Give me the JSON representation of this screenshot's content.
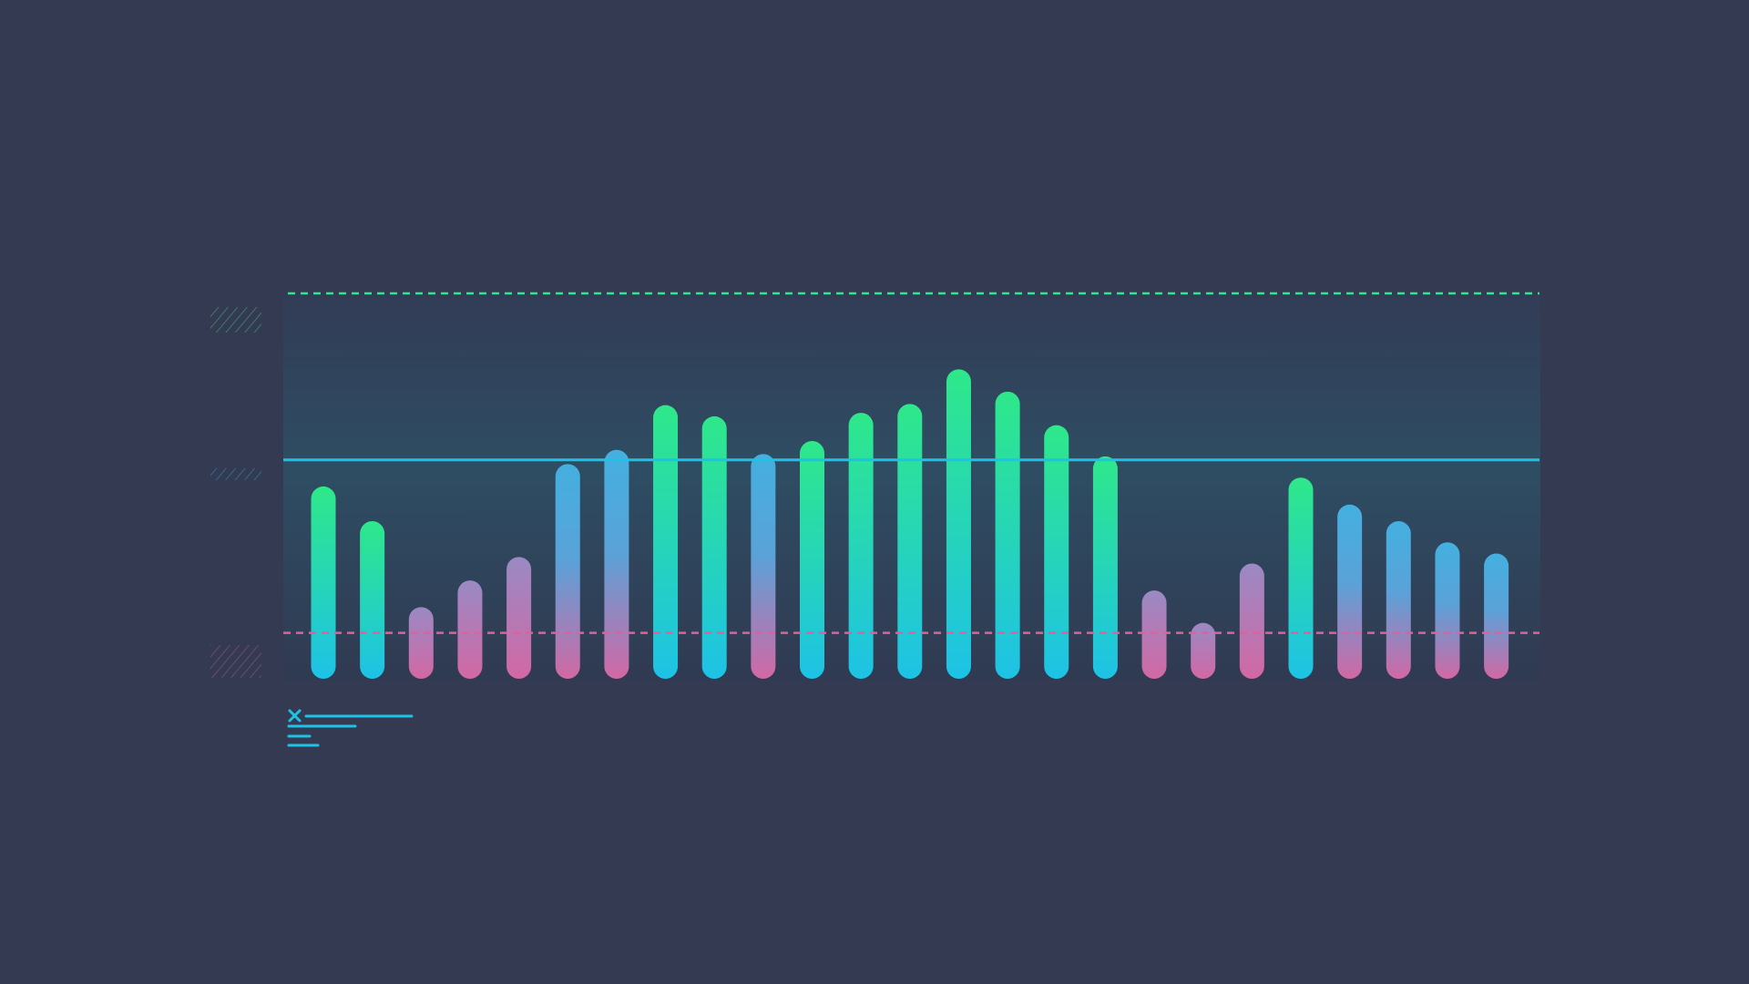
{
  "chart_data": {
    "type": "bar",
    "title": "",
    "xlabel": "",
    "ylabel": "",
    "ylim": [
      0,
      100
    ],
    "grid": false,
    "values": [
      49.9,
      40.9,
      18.6,
      25.5,
      31.6,
      55.7,
      59.4,
      71.0,
      68.1,
      58.3,
      61.7,
      69.0,
      71.3,
      80.3,
      74.5,
      65.8,
      57.7,
      22.9,
      14.5,
      29.9,
      52.2,
      45.2,
      40.9,
      35.4,
      32.5
    ],
    "bar_styles": [
      "green",
      "green",
      "pink",
      "pink",
      "pink",
      "blue-pink",
      "blue-pink",
      "green",
      "green",
      "blue-pink",
      "green",
      "green",
      "green",
      "green",
      "green",
      "green",
      "green",
      "pink",
      "pink",
      "pink",
      "green",
      "blue-pink",
      "blue-pink",
      "blue-pink",
      "blue-pink"
    ],
    "reference_lines": [
      {
        "kind": "upper-dashed",
        "value": 100,
        "color": "#2ee88a"
      },
      {
        "kind": "solid",
        "value": 56.8,
        "color": "#1ec2e6"
      },
      {
        "kind": "lower-dashed",
        "value": 11.9,
        "color": "#e0609a"
      }
    ],
    "legend": {
      "placement": "bottom-left",
      "icon": "close-x-icon",
      "entries": []
    }
  },
  "colors": {
    "background": "#333a52",
    "green": "#2ee88a",
    "cyan": "#1ec2e6",
    "blue": "#4aa6dc",
    "pink": "#d268a4"
  }
}
